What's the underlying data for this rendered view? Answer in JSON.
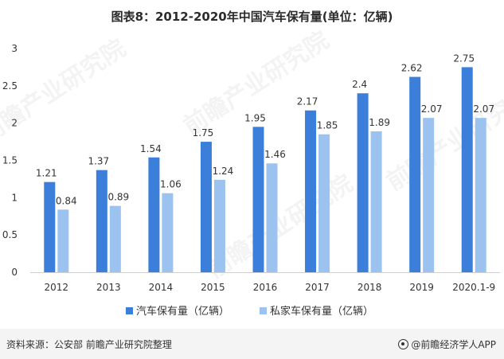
{
  "title": "图表8：2012-2020年中国汽车保有量(单位：亿辆)",
  "watermark": "前瞻产业研究院",
  "chart_data": {
    "type": "bar",
    "categories": [
      "2012",
      "2013",
      "2014",
      "2015",
      "2016",
      "2017",
      "2018",
      "2019",
      "2020.1-9"
    ],
    "series": [
      {
        "name": "汽车保有量（亿辆）",
        "color": "#3b7fdb",
        "values": [
          1.21,
          1.37,
          1.54,
          1.75,
          1.95,
          2.17,
          2.4,
          2.62,
          2.75
        ],
        "labels": [
          "1.21",
          "1.37",
          "1.54",
          "1.75",
          "1.95",
          "2.17",
          "2.4",
          "2.62",
          "2.75"
        ]
      },
      {
        "name": "私家车保有量（亿辆）",
        "color": "#9cc3f0",
        "values": [
          0.84,
          0.89,
          1.06,
          1.24,
          1.46,
          1.85,
          1.89,
          2.07,
          2.07
        ],
        "labels": [
          "0.84",
          "0.89",
          "1.06",
          "1.24",
          "1.46",
          "1.85",
          "1.89",
          "2.07",
          "2.07"
        ]
      }
    ],
    "yticks": [
      "0",
      "0.5",
      "1",
      "1.5",
      "2",
      "2.5",
      "3"
    ],
    "ylim": [
      0,
      3
    ],
    "grid": false,
    "legend_position": "bottom"
  },
  "footer": {
    "source": "资料来源：公安部 前瞻产业研究院整理",
    "brand": "@前瞻经济学人APP",
    "brand_icon": "qianzhan-logo-icon"
  }
}
